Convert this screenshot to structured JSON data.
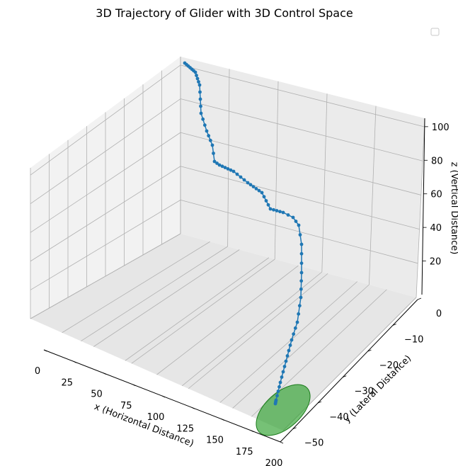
{
  "chart_data": {
    "type": "scatter",
    "projection": "3d",
    "title": "3D Trajectory of Glider with 3D Control Space",
    "xlabel": "x (Horizontal Distance)",
    "ylabel": "y (Lateral Distance)",
    "zlabel": "z (Vertical Distance)",
    "xlim": [
      0,
      200
    ],
    "ylim": [
      -55,
      0
    ],
    "zlim": [
      0,
      100
    ],
    "xticks": [
      "0",
      "25",
      "50",
      "75",
      "100",
      "125",
      "150",
      "175",
      "200"
    ],
    "yticks": [
      "0",
      "−10",
      "−20",
      "−30",
      "−40",
      "−50"
    ],
    "zticks": [
      "20",
      "40",
      "60",
      "80",
      "100"
    ],
    "grid": true,
    "legend": "top-right, empty",
    "series": [
      {
        "marker": "dot-line",
        "color": "#1f77b4",
        "x": [
          0,
          1,
          2,
          3,
          4,
          5,
          6,
          7,
          8,
          9,
          10,
          11,
          12,
          13,
          14,
          15,
          16,
          18,
          20,
          22,
          24,
          26,
          29,
          32,
          35,
          38,
          41,
          44,
          47,
          50,
          53,
          56,
          59,
          62,
          65,
          68,
          71,
          74,
          77,
          80,
          83,
          86,
          89,
          92,
          95,
          98,
          101,
          104,
          107,
          110,
          113,
          116,
          119,
          122,
          125,
          128,
          131,
          134,
          137,
          140,
          143,
          146,
          149,
          152,
          155,
          158,
          161,
          164,
          167,
          170,
          173,
          176,
          179,
          182,
          185,
          188,
          191,
          194,
          197,
          200
        ],
        "y": [
          0,
          -0.2,
          -0.5,
          -1,
          -1.5,
          -2,
          -2.6,
          -3.2,
          -3.8,
          -4.4,
          -5,
          -5.6,
          -6.2,
          -6.8,
          -7.4,
          -8,
          -8.6,
          -9.3,
          -10,
          -10.7,
          -11.4,
          -12.1,
          -12.8,
          -13.5,
          -14.2,
          -14.9,
          -15.6,
          -16.3,
          -17,
          -17.7,
          -18.4,
          -19.1,
          -19.8,
          -20.5,
          -21.2,
          -21.9,
          -22.6,
          -23.3,
          -24,
          -24.7,
          -25.4,
          -26.1,
          -26.8,
          -27.5,
          -28.2,
          -28.9,
          -29.6,
          -30.3,
          -31,
          -31.7,
          -32.4,
          -33.1,
          -33.8,
          -34.5,
          -35.2,
          -35.9,
          -36.6,
          -37.3,
          -38,
          -38.7,
          -39.4,
          -40.1,
          -40.8,
          -41.5,
          -42.2,
          -42.9,
          -43.6,
          -44.3,
          -45,
          -45.7,
          -46.4,
          -47.1,
          -47.8,
          -48.5,
          -49.2,
          -49.9,
          -50.6,
          -51.3,
          -52,
          -52.5
        ],
        "z": [
          100,
          99.5,
          99,
          98,
          97,
          95.5,
          94,
          92,
          90,
          88,
          86,
          84,
          82,
          80,
          78,
          76,
          74,
          72,
          70,
          68.5,
          67,
          65.5,
          64.5,
          63.5,
          62.5,
          61.5,
          60.5,
          59.5,
          58.5,
          57.5,
          56.5,
          55.5,
          54.5,
          53.5,
          52.5,
          51.5,
          50.5,
          49.5,
          48.5,
          47.5,
          46.5,
          45.5,
          44.5,
          43.5,
          42.5,
          41.5,
          40.5,
          39.5,
          38.5,
          37.5,
          36.5,
          35.5,
          34.5,
          33.5,
          32.5,
          31.5,
          30.5,
          29.5,
          28.5,
          27.5,
          26.5,
          25.5,
          24.5,
          23.5,
          22.5,
          21.5,
          20.5,
          19.5,
          18.5,
          17.5,
          16.5,
          15.5,
          14.5,
          13.5,
          12.5,
          11.5,
          10.5,
          9.5,
          8.5,
          7.5
        ]
      }
    ],
    "annotations": [
      {
        "shape": "ellipse",
        "color": "#2ca02c",
        "label": ""
      }
    ]
  }
}
